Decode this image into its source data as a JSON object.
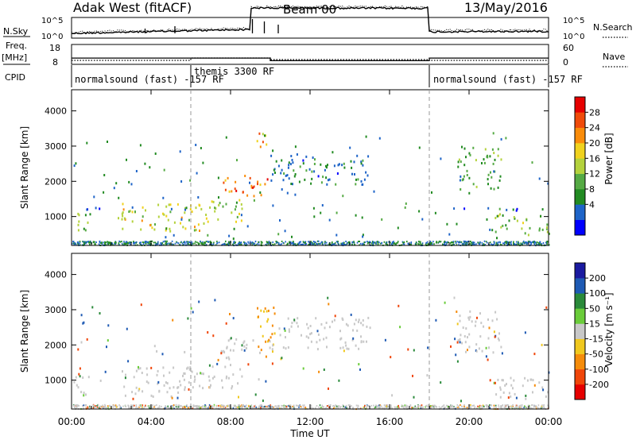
{
  "header": {
    "station": "Adak West (fitACF)",
    "beam": "Beam 00",
    "date": "13/May/2016"
  },
  "left_labels": {
    "nsky": "N.Sky",
    "freq_line1": "Freq.",
    "freq_line2": "[MHz]",
    "cpid": "CPID"
  },
  "right_labels": {
    "nsearch": "N.Search",
    "nave": "Nave"
  },
  "noise_panel": {
    "left_ticks": [
      "10^5",
      "10^0"
    ],
    "right_ticks": [
      "10^5",
      "10^0"
    ]
  },
  "freq_panel": {
    "left_ticks": [
      "18",
      "8"
    ],
    "right_ticks": [
      "60",
      "0"
    ]
  },
  "cpid_segments": [
    {
      "label": "normalsound (fast) -157 RF",
      "start_h": 0,
      "end_h": 6
    },
    {
      "label": "themis 3300 RF",
      "start_h": 6,
      "end_h": 18
    },
    {
      "label": "normalsound (fast) -157 RF",
      "start_h": 18,
      "end_h": 24
    }
  ],
  "x_axis": {
    "label": "Time UT",
    "ticks": [
      "00:00",
      "04:00",
      "08:00",
      "12:00",
      "16:00",
      "20:00",
      "00:00"
    ]
  },
  "power_colorbar": {
    "label": "Power [dB]",
    "ticks": [
      "28",
      "24",
      "20",
      "16",
      "12",
      "8",
      "4"
    ],
    "colors": [
      "#0000ff",
      "#1e64c8",
      "#228b22",
      "#55aa44",
      "#b4d23c",
      "#f0d21e",
      "#fa8c0a",
      "#f04b0a",
      "#e60000"
    ]
  },
  "velocity_colorbar": {
    "label": "Velocity [m s⁻¹]",
    "ticks": [
      "200",
      "100",
      "50",
      "15",
      "-15",
      "-50",
      "-100",
      "-200"
    ],
    "colors": [
      "#1a1aa0",
      "#1e5ab4",
      "#2a8a3a",
      "#6acc3a",
      "#c8c8c8",
      "#f0c81e",
      "#f58c0a",
      "#f0460a",
      "#e60000"
    ]
  },
  "chart_data": [
    {
      "type": "heatmap",
      "name": "Power",
      "ylabel": "Slant Range [km]",
      "xlabel": "Time UT",
      "xlim": [
        0,
        24
      ],
      "ylim": [
        180,
        4600
      ],
      "yticks": [
        1000,
        2000,
        3000,
        4000
      ],
      "grid": false,
      "dashed_markers_h": [
        6,
        18
      ],
      "echo_regions": [
        {
          "t0": 0.0,
          "t1": 1.0,
          "r0": 600,
          "r1": 1150,
          "power_db": 14
        },
        {
          "t0": 2.3,
          "t1": 6.5,
          "r0": 550,
          "r1": 1400,
          "power_db": 18
        },
        {
          "t0": 6.5,
          "t1": 8.6,
          "r0": 800,
          "r1": 1500,
          "power_db": 16
        },
        {
          "t0": 7.5,
          "t1": 10.0,
          "r0": 1600,
          "r1": 2200,
          "power_db": 24
        },
        {
          "t0": 9.0,
          "t1": 9.8,
          "r0": 2900,
          "r1": 3400,
          "power_db": 22
        },
        {
          "t0": 10.0,
          "t1": 15.0,
          "r0": 1900,
          "r1": 2800,
          "power_db": 8
        },
        {
          "t0": 19.4,
          "t1": 21.6,
          "r0": 1800,
          "r1": 3000,
          "power_db": 12
        },
        {
          "t0": 21.0,
          "t1": 24.0,
          "r0": 500,
          "r1": 1100,
          "power_db": 14
        },
        {
          "t0": 0.0,
          "t1": 6.0,
          "r0": 1220,
          "r1": 1290,
          "power_db": 6
        },
        {
          "t0": 18.4,
          "t1": 24.0,
          "r0": 1200,
          "r1": 1280,
          "power_db": 6
        }
      ]
    },
    {
      "type": "heatmap",
      "name": "Velocity",
      "ylabel": "Slant Range [km]",
      "xlabel": "Time UT",
      "xlim": [
        0,
        24
      ],
      "ylim": [
        180,
        4600
      ],
      "yticks": [
        1000,
        2000,
        3000,
        4000
      ],
      "grid": false,
      "dashed_markers_h": [
        6,
        18
      ],
      "echo_regions": [
        {
          "t0": 0.0,
          "t1": 1.0,
          "r0": 600,
          "r1": 1150,
          "velocity_ms": 0
        },
        {
          "t0": 2.3,
          "t1": 6.5,
          "r0": 550,
          "r1": 1400,
          "velocity_ms": 0
        },
        {
          "t0": 6.5,
          "t1": 8.6,
          "r0": 800,
          "r1": 1500,
          "velocity_ms": 0
        },
        {
          "t0": 7.5,
          "t1": 10.0,
          "r0": 1600,
          "r1": 2200,
          "velocity_ms": 0
        },
        {
          "t0": 9.3,
          "t1": 10.2,
          "r0": 1400,
          "r1": 3100,
          "velocity_ms": -50
        },
        {
          "t0": 10.0,
          "t1": 15.0,
          "r0": 1900,
          "r1": 2800,
          "velocity_ms": 0
        },
        {
          "t0": 19.4,
          "t1": 21.6,
          "r0": 1800,
          "r1": 3000,
          "velocity_ms": 0
        },
        {
          "t0": 21.0,
          "t1": 24.0,
          "r0": 500,
          "r1": 1100,
          "velocity_ms": 0
        }
      ]
    }
  ]
}
